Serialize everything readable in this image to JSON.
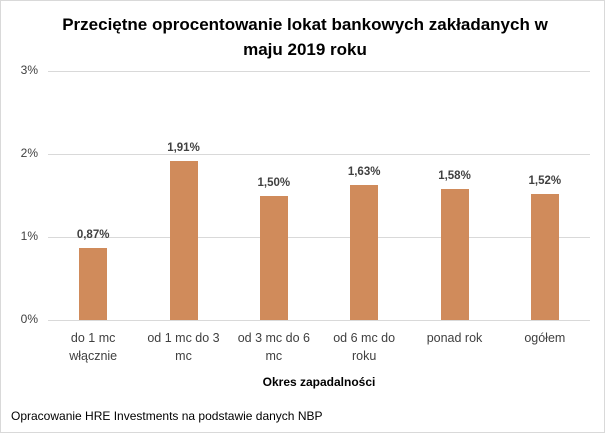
{
  "chart_data": {
    "type": "bar",
    "title": "Przeciętne oprocentowanie lokat bankowych zakładanych w maju 2019 roku",
    "title_lines": [
      "Przeciętne oprocentowanie lokat bankowych zakładanych w",
      "maju 2019 roku"
    ],
    "categories": [
      "do 1 mc włącznie",
      "od 1 mc do 3 mc",
      "od 3 mc do 6 mc",
      "od 6 mc do roku",
      "ponad rok",
      "ogółem"
    ],
    "category_lines": [
      [
        "do 1 mc",
        "włącznie"
      ],
      [
        "od 1 mc do 3",
        "mc"
      ],
      [
        "od 3 mc do 6",
        "mc"
      ],
      [
        "od 6 mc do",
        "roku"
      ],
      [
        "ponad rok",
        ""
      ],
      [
        "ogółem",
        ""
      ]
    ],
    "values": [
      0.87,
      1.91,
      1.5,
      1.63,
      1.58,
      1.52
    ],
    "data_labels": [
      "0,87%",
      "1,91%",
      "1,50%",
      "1,63%",
      "1,58%",
      "1,52%"
    ],
    "xlabel": "Okres zapadalności",
    "ylabel": "",
    "ylim": [
      0,
      3
    ],
    "yticks": [
      "0%",
      "1%",
      "2%",
      "3%"
    ],
    "grid": true,
    "legend": null,
    "bar_color": "#d08b5b"
  },
  "source": "Opracowanie HRE Investments na podstawie danych NBP"
}
